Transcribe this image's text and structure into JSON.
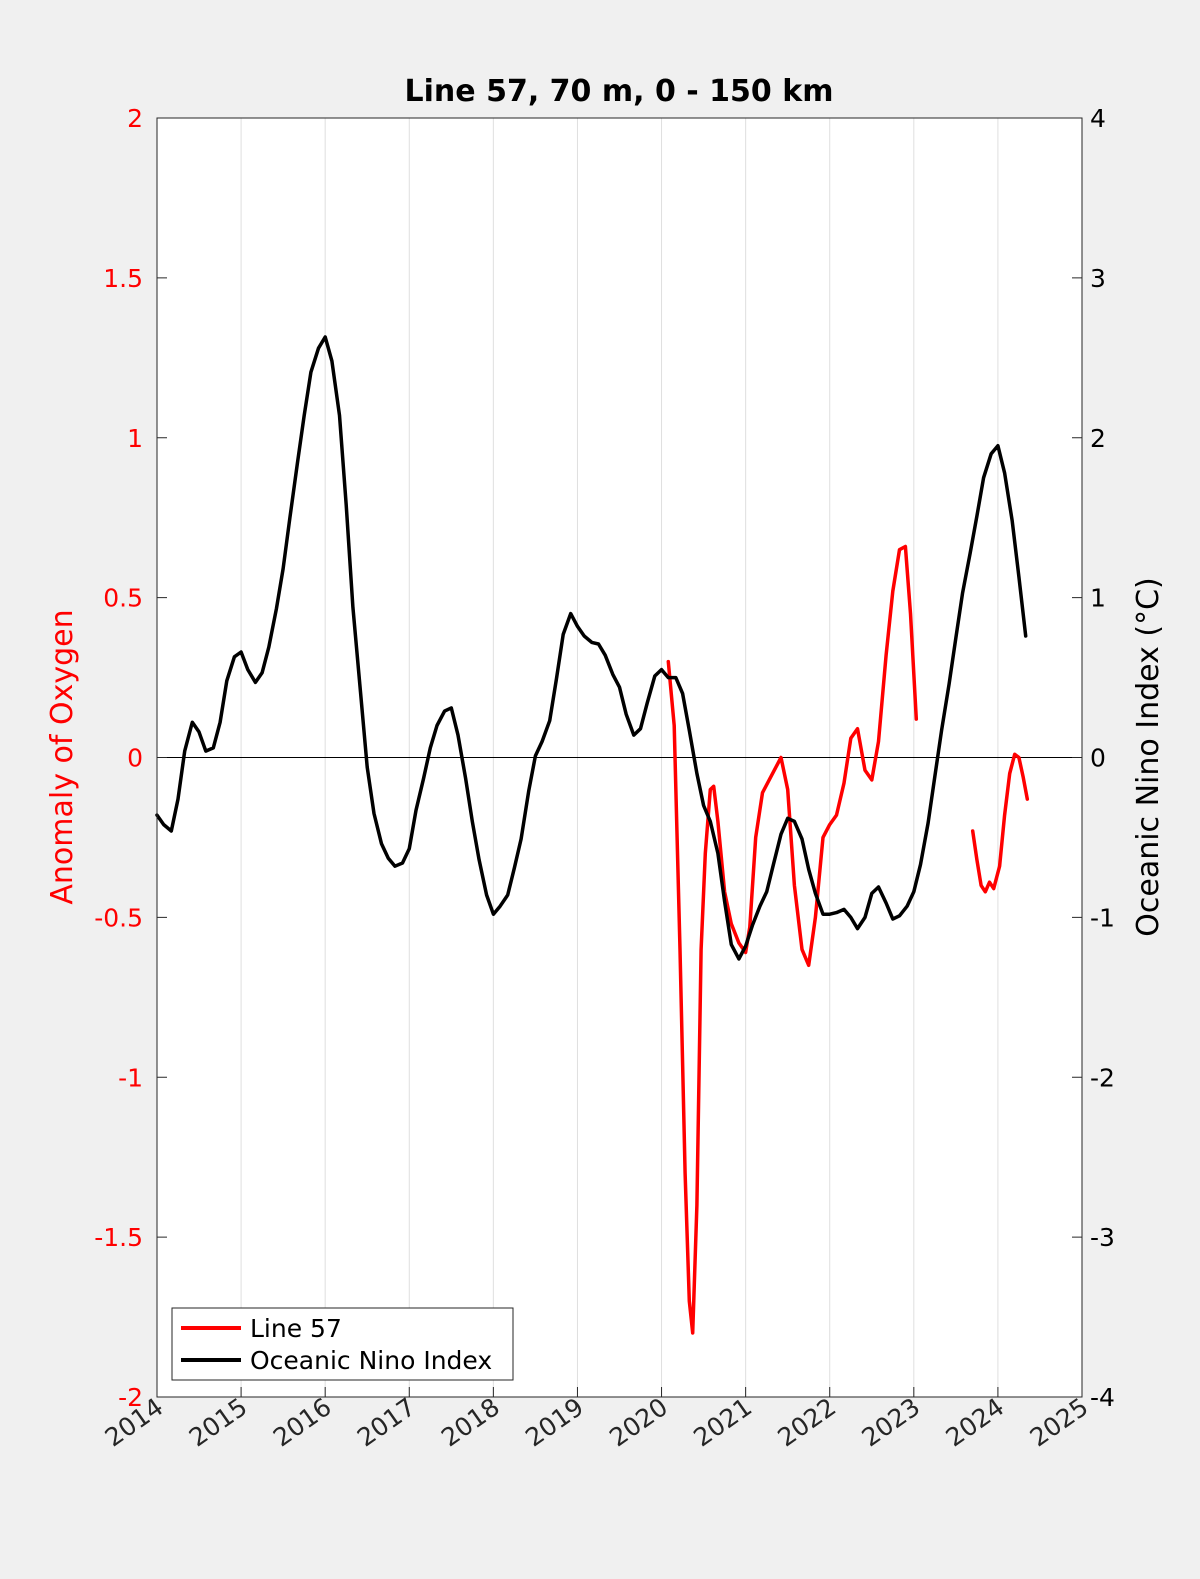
{
  "chart_data": {
    "type": "line",
    "title": "Line 57, 70 m, 0 - 150 km",
    "xlabel": "",
    "ylabel_left": "Anomaly of Oxygen",
    "ylabel_right": "Oceanic Nino Index (°C)",
    "xlim": [
      2014,
      2025
    ],
    "ylim_left": [
      -2,
      2
    ],
    "ylim_right": [
      -4,
      4
    ],
    "x_ticks": [
      2014,
      2015,
      2016,
      2017,
      2018,
      2019,
      2020,
      2021,
      2022,
      2023,
      2024,
      2025
    ],
    "y_ticks_left": [
      "-2",
      "-1.5",
      "-1",
      "-0.5",
      "0",
      "0.5",
      "1",
      "1.5",
      "2"
    ],
    "y_ticks_right": [
      "-4",
      "-3",
      "-2",
      "-1",
      "0",
      "1",
      "2",
      "3",
      "4"
    ],
    "grid": "vertical",
    "zero_line": true,
    "legend_position": "bottom-left",
    "colors": {
      "line57": "#ff0000",
      "oni": "#000000",
      "left_axis": "#ff0000",
      "right_axis": "#000000"
    },
    "series": [
      {
        "name": "Line 57",
        "axis": "left",
        "segments": [
          [
            [
              2020.08,
              0.3
            ],
            [
              2020.15,
              0.1
            ],
            [
              2020.22,
              -0.6
            ],
            [
              2020.28,
              -1.3
            ],
            [
              2020.33,
              -1.7
            ],
            [
              2020.37,
              -1.8
            ],
            [
              2020.42,
              -1.4
            ],
            [
              2020.47,
              -0.6
            ],
            [
              2020.52,
              -0.3
            ],
            [
              2020.58,
              -0.1
            ],
            [
              2020.62,
              -0.09
            ],
            [
              2020.67,
              -0.2
            ],
            [
              2020.75,
              -0.42
            ],
            [
              2020.83,
              -0.52
            ],
            [
              2020.92,
              -0.58
            ],
            [
              2021.0,
              -0.61
            ],
            [
              2021.05,
              -0.53
            ],
            [
              2021.12,
              -0.25
            ],
            [
              2021.2,
              -0.11
            ],
            [
              2021.3,
              -0.06
            ],
            [
              2021.42,
              0.0
            ],
            [
              2021.5,
              -0.1
            ],
            [
              2021.58,
              -0.4
            ],
            [
              2021.67,
              -0.6
            ],
            [
              2021.75,
              -0.65
            ],
            [
              2021.83,
              -0.5
            ],
            [
              2021.92,
              -0.25
            ],
            [
              2022.0,
              -0.21
            ],
            [
              2022.08,
              -0.18
            ],
            [
              2022.17,
              -0.08
            ],
            [
              2022.25,
              0.06
            ],
            [
              2022.33,
              0.09
            ],
            [
              2022.42,
              -0.04
            ],
            [
              2022.5,
              -0.07
            ],
            [
              2022.58,
              0.05
            ],
            [
              2022.67,
              0.32
            ],
            [
              2022.75,
              0.52
            ],
            [
              2022.83,
              0.65
            ],
            [
              2022.9,
              0.66
            ],
            [
              2022.96,
              0.45
            ],
            [
              2023.03,
              0.12
            ]
          ],
          [
            [
              2023.7,
              -0.23
            ],
            [
              2023.75,
              -0.32
            ],
            [
              2023.8,
              -0.4
            ],
            [
              2023.85,
              -0.42
            ],
            [
              2023.9,
              -0.39
            ],
            [
              2023.95,
              -0.41
            ],
            [
              2024.02,
              -0.34
            ],
            [
              2024.08,
              -0.18
            ],
            [
              2024.14,
              -0.05
            ],
            [
              2024.2,
              0.01
            ],
            [
              2024.25,
              0.0
            ],
            [
              2024.3,
              -0.06
            ],
            [
              2024.35,
              -0.13
            ]
          ]
        ]
      },
      {
        "name": "Oceanic Nino Index",
        "axis": "right",
        "segments": [
          [
            [
              2014.0,
              -0.36
            ],
            [
              2014.08,
              -0.42
            ],
            [
              2014.17,
              -0.46
            ],
            [
              2014.25,
              -0.26
            ],
            [
              2014.33,
              0.04
            ],
            [
              2014.42,
              0.22
            ],
            [
              2014.5,
              0.16
            ],
            [
              2014.58,
              0.04
            ],
            [
              2014.67,
              0.06
            ],
            [
              2014.75,
              0.22
            ],
            [
              2014.83,
              0.48
            ],
            [
              2014.92,
              0.63
            ],
            [
              2015.0,
              0.66
            ],
            [
              2015.08,
              0.55
            ],
            [
              2015.17,
              0.47
            ],
            [
              2015.25,
              0.53
            ],
            [
              2015.33,
              0.69
            ],
            [
              2015.42,
              0.93
            ],
            [
              2015.5,
              1.18
            ],
            [
              2015.58,
              1.5
            ],
            [
              2015.67,
              1.84
            ],
            [
              2015.75,
              2.14
            ],
            [
              2015.83,
              2.41
            ],
            [
              2015.92,
              2.56
            ],
            [
              2016.0,
              2.63
            ],
            [
              2016.08,
              2.48
            ],
            [
              2016.17,
              2.14
            ],
            [
              2016.25,
              1.58
            ],
            [
              2016.33,
              0.94
            ],
            [
              2016.42,
              0.41
            ],
            [
              2016.5,
              -0.06
            ],
            [
              2016.58,
              -0.35
            ],
            [
              2016.67,
              -0.54
            ],
            [
              2016.75,
              -0.63
            ],
            [
              2016.83,
              -0.68
            ],
            [
              2016.92,
              -0.66
            ],
            [
              2017.0,
              -0.57
            ],
            [
              2017.08,
              -0.33
            ],
            [
              2017.17,
              -0.13
            ],
            [
              2017.25,
              0.06
            ],
            [
              2017.33,
              0.2
            ],
            [
              2017.42,
              0.29
            ],
            [
              2017.5,
              0.31
            ],
            [
              2017.58,
              0.14
            ],
            [
              2017.67,
              -0.13
            ],
            [
              2017.75,
              -0.4
            ],
            [
              2017.83,
              -0.64
            ],
            [
              2017.92,
              -0.86
            ],
            [
              2018.0,
              -0.98
            ],
            [
              2018.08,
              -0.93
            ],
            [
              2018.17,
              -0.86
            ],
            [
              2018.25,
              -0.69
            ],
            [
              2018.33,
              -0.51
            ],
            [
              2018.42,
              -0.21
            ],
            [
              2018.5,
              0.01
            ],
            [
              2018.58,
              0.1
            ],
            [
              2018.67,
              0.23
            ],
            [
              2018.75,
              0.49
            ],
            [
              2018.83,
              0.77
            ],
            [
              2018.92,
              0.9
            ],
            [
              2019.0,
              0.82
            ],
            [
              2019.08,
              0.76
            ],
            [
              2019.17,
              0.72
            ],
            [
              2019.25,
              0.71
            ],
            [
              2019.33,
              0.64
            ],
            [
              2019.42,
              0.52
            ],
            [
              2019.5,
              0.44
            ],
            [
              2019.58,
              0.27
            ],
            [
              2019.67,
              0.14
            ],
            [
              2019.75,
              0.18
            ],
            [
              2019.83,
              0.34
            ],
            [
              2019.92,
              0.51
            ],
            [
              2020.0,
              0.55
            ],
            [
              2020.08,
              0.5
            ],
            [
              2020.17,
              0.5
            ],
            [
              2020.25,
              0.4
            ],
            [
              2020.33,
              0.17
            ],
            [
              2020.42,
              -0.1
            ],
            [
              2020.5,
              -0.3
            ],
            [
              2020.58,
              -0.4
            ],
            [
              2020.67,
              -0.6
            ],
            [
              2020.75,
              -0.9
            ],
            [
              2020.83,
              -1.17
            ],
            [
              2020.92,
              -1.26
            ],
            [
              2021.0,
              -1.18
            ],
            [
              2021.08,
              -1.05
            ],
            [
              2021.17,
              -0.93
            ],
            [
              2021.25,
              -0.84
            ],
            [
              2021.33,
              -0.67
            ],
            [
              2021.42,
              -0.48
            ],
            [
              2021.5,
              -0.38
            ],
            [
              2021.58,
              -0.4
            ],
            [
              2021.67,
              -0.51
            ],
            [
              2021.75,
              -0.7
            ],
            [
              2021.83,
              -0.85
            ],
            [
              2021.92,
              -0.98
            ],
            [
              2022.0,
              -0.98
            ],
            [
              2022.08,
              -0.97
            ],
            [
              2022.17,
              -0.95
            ],
            [
              2022.25,
              -1.0
            ],
            [
              2022.33,
              -1.07
            ],
            [
              2022.42,
              -1.0
            ],
            [
              2022.5,
              -0.85
            ],
            [
              2022.58,
              -0.81
            ],
            [
              2022.67,
              -0.91
            ],
            [
              2022.75,
              -1.01
            ],
            [
              2022.83,
              -0.99
            ],
            [
              2022.92,
              -0.93
            ],
            [
              2023.0,
              -0.84
            ],
            [
              2023.08,
              -0.67
            ],
            [
              2023.17,
              -0.41
            ],
            [
              2023.25,
              -0.12
            ],
            [
              2023.33,
              0.17
            ],
            [
              2023.42,
              0.46
            ],
            [
              2023.5,
              0.75
            ],
            [
              2023.58,
              1.03
            ],
            [
              2023.67,
              1.28
            ],
            [
              2023.75,
              1.51
            ],
            [
              2023.83,
              1.75
            ],
            [
              2023.92,
              1.9
            ],
            [
              2024.0,
              1.95
            ],
            [
              2024.08,
              1.78
            ],
            [
              2024.17,
              1.48
            ],
            [
              2024.25,
              1.13
            ],
            [
              2024.33,
              0.76
            ]
          ]
        ]
      }
    ]
  }
}
